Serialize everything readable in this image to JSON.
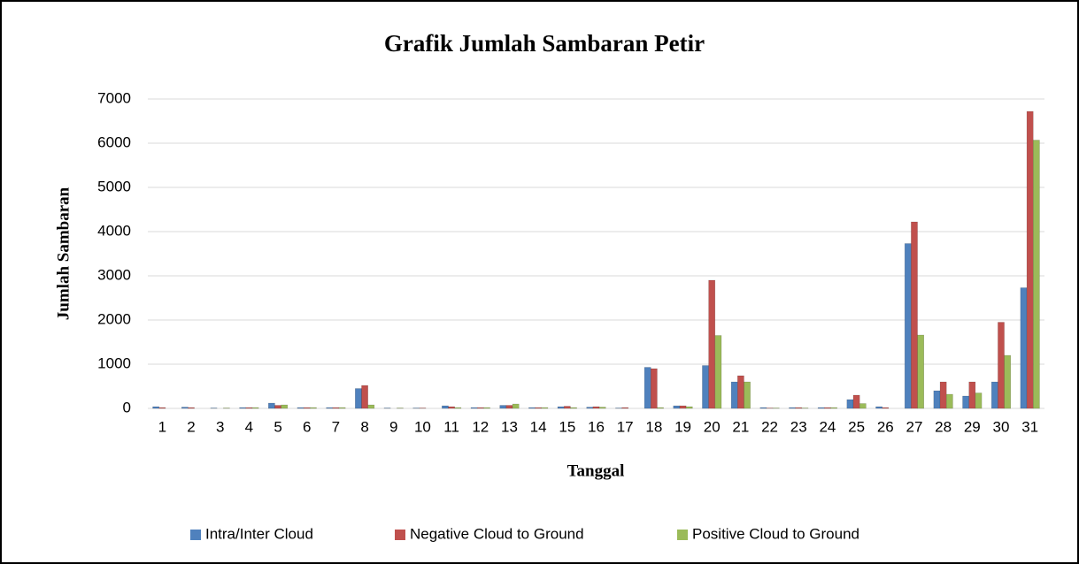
{
  "chart_data": {
    "type": "bar",
    "title": "Grafik Jumlah Sambaran Petir",
    "x_label": "Tanggal",
    "y_label": "Jumlah Sambaran",
    "categories": [
      "1",
      "2",
      "3",
      "4",
      "5",
      "6",
      "7",
      "8",
      "9",
      "10",
      "11",
      "12",
      "13",
      "14",
      "15",
      "16",
      "17",
      "18",
      "19",
      "20",
      "21",
      "22",
      "23",
      "24",
      "25",
      "26",
      "27",
      "28",
      "29",
      "30",
      "31"
    ],
    "series": [
      {
        "name": "Intra/Inter Cloud",
        "color": "#4f81bd",
        "values": [
          40,
          30,
          10,
          20,
          120,
          20,
          20,
          450,
          10,
          10,
          60,
          20,
          70,
          20,
          40,
          30,
          10,
          930,
          60,
          970,
          600,
          20,
          20,
          20,
          200,
          40,
          3730,
          400,
          280,
          600,
          2730
        ]
      },
      {
        "name": "Negative Cloud to Ground",
        "color": "#c0504d",
        "values": [
          20,
          20,
          0,
          20,
          70,
          20,
          20,
          520,
          0,
          10,
          40,
          20,
          70,
          20,
          50,
          40,
          20,
          900,
          60,
          2900,
          740,
          10,
          20,
          20,
          300,
          20,
          4220,
          600,
          600,
          1950,
          6720
        ]
      },
      {
        "name": "Positive Cloud to Ground",
        "color": "#9bbb59",
        "values": [
          0,
          0,
          10,
          20,
          80,
          20,
          20,
          80,
          10,
          0,
          20,
          20,
          100,
          20,
          20,
          30,
          0,
          20,
          40,
          1650,
          600,
          10,
          10,
          20,
          110,
          0,
          1660,
          320,
          350,
          1200,
          6070
        ]
      }
    ],
    "ylim": [
      0,
      7000
    ],
    "yticks": [
      0,
      1000,
      2000,
      3000,
      4000,
      5000,
      6000,
      7000
    ],
    "grid": true,
    "legend": "bottom"
  }
}
